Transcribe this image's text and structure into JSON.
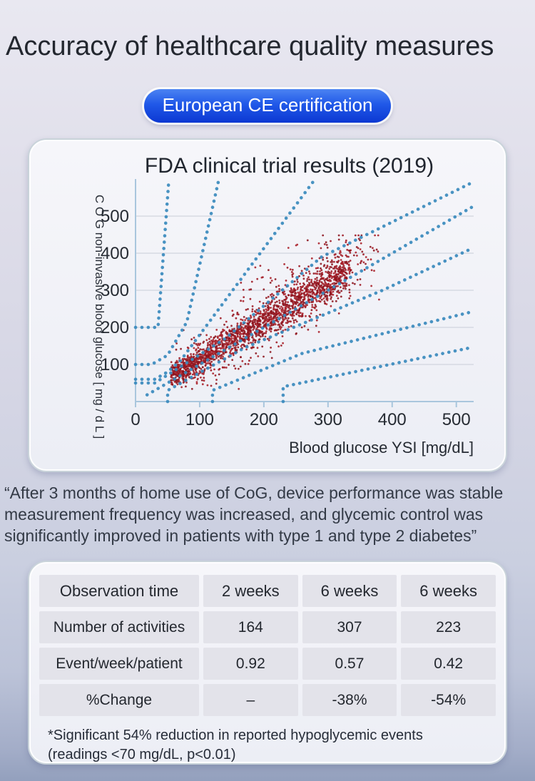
{
  "page": {
    "title": "Accuracy of healthcare quality measures",
    "badge": {
      "label": "European CE certification",
      "bg_color": "#1d50e0",
      "text_color": "#ffffff"
    }
  },
  "quote": {
    "lines": [
      "“After 3 months of home use of CoG, device performance was stable",
      "measurement frequency was increased, and glycemic control was",
      "significantly improved in patients with type 1 and type 2 diabetes”"
    ]
  },
  "chart_data": {
    "type": "scatter",
    "title": "FDA clinical trial results (2019)",
    "xlabel": "Blood glucose YSI [mg/dL]",
    "ylabel": "C O G non-invasive blood glucose [ mg / d L ]",
    "xlim": [
      0,
      527
    ],
    "ylim": [
      0,
      600
    ],
    "x_ticks": [
      0,
      100,
      200,
      300,
      400,
      500
    ],
    "y_ticks": [
      100,
      200,
      300,
      400,
      500
    ],
    "grid": "horizontal-only",
    "legend": "none",
    "point_color": "#9c1620",
    "point_shades": [
      "#9c1620",
      "#a81c26",
      "#8b121b"
    ],
    "error_grid_color": "#3a8abd",
    "axis_color": "#a9c6dd",
    "gridline_color": "#c8cdd8",
    "description": "Consensus (Parkes) error-grid style scatter of CoG non-invasive blood glucose vs YSI reference; dense cluster along the identity line from about (55,70) to (380,400) mg/dL, blue dotted zone boundaries",
    "scatter_generation": {
      "seed": 11,
      "core": {
        "count": 1700,
        "x_min": 55,
        "x_span": 280,
        "x_pow": 1.1,
        "slope": 1.03,
        "intercept": 10,
        "sigma_base": 13,
        "sigma_per_x": 0.05
      },
      "halo": {
        "count": 330,
        "x_min": 60,
        "x_span": 320,
        "slope": 1.05,
        "intercept": 12,
        "sigma": 46
      },
      "upper_spray": {
        "count": 80,
        "x_min": 140,
        "x_span": 210,
        "offset_min": 40,
        "offset_span": 140
      },
      "lower_spray": {
        "count": 40,
        "x_min": 80,
        "x_span": 220,
        "factor_min": 0.55,
        "factor_span": 0.35
      },
      "clamp": {
        "x": [
          36,
          414
        ],
        "y": [
          34,
          448
        ]
      }
    },
    "error_grid_lines": [
      {
        "name": "zone-e-upper",
        "points": [
          [
            0,
            200
          ],
          [
            35,
            200
          ],
          [
            52,
            600
          ]
        ]
      },
      {
        "name": "zone-d-upper",
        "points": [
          [
            0,
            100
          ],
          [
            25,
            100
          ],
          [
            50,
            125
          ],
          [
            80,
            215
          ],
          [
            130,
            600
          ]
        ]
      },
      {
        "name": "zone-c-upper",
        "points": [
          [
            0,
            60
          ],
          [
            30,
            60
          ],
          [
            50,
            80
          ],
          [
            70,
            110
          ],
          [
            280,
            600
          ]
        ]
      },
      {
        "name": "zone-b-upper",
        "points": [
          [
            0,
            50
          ],
          [
            30,
            50
          ],
          [
            140,
            170
          ],
          [
            290,
            390
          ],
          [
            524,
            590
          ]
        ]
      },
      {
        "name": "identity",
        "points": [
          [
            18,
            18
          ],
          [
            527,
            527
          ]
        ]
      },
      {
        "name": "zone-b-lower",
        "points": [
          [
            50,
            0
          ],
          [
            50,
            30
          ],
          [
            170,
            145
          ],
          [
            385,
            300
          ],
          [
            527,
            415
          ]
        ]
      },
      {
        "name": "zone-c-lower",
        "points": [
          [
            120,
            0
          ],
          [
            120,
            30
          ],
          [
            260,
            130
          ],
          [
            527,
            243
          ]
        ]
      },
      {
        "name": "zone-d-lower",
        "points": [
          [
            230,
            0
          ],
          [
            230,
            40
          ],
          [
            527,
            147
          ]
        ]
      }
    ]
  },
  "table": {
    "header": {
      "label": "Observation time",
      "values": [
        "2 weeks",
        "6 weeks",
        "6 weeks"
      ]
    },
    "rows": [
      {
        "label": "Number of activities",
        "values": [
          "164",
          "307",
          "223"
        ]
      },
      {
        "label": "Event/week/patient",
        "values": [
          "0.92",
          "0.57",
          "0.42"
        ]
      },
      {
        "label": "%Change",
        "values": [
          "–",
          "-38%",
          "-54%"
        ]
      }
    ]
  },
  "footnote": {
    "lines": [
      "*Significant 54% reduction in reported hypoglycemic events",
      "(readings <70 mg/dL, p<0.01)"
    ]
  }
}
